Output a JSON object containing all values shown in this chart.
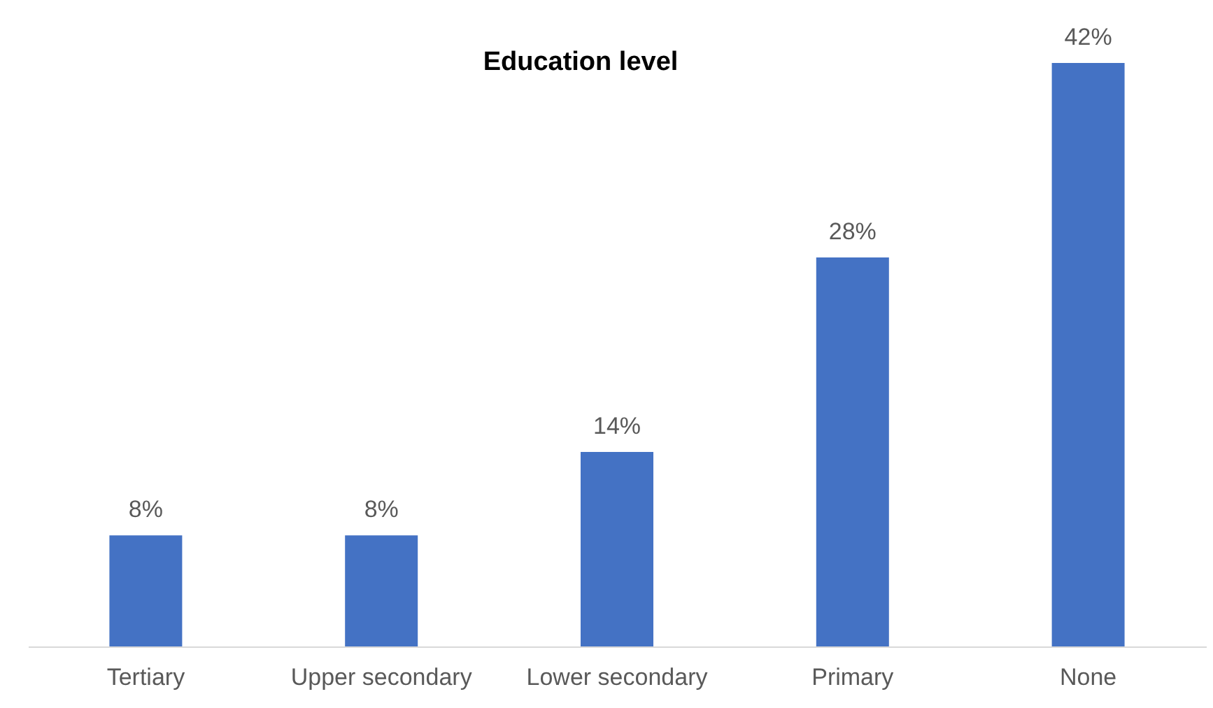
{
  "chart_data": {
    "type": "bar",
    "title": "Education level",
    "categories": [
      "Tertiary",
      "Upper secondary",
      "Lower secondary",
      "Primary",
      "None"
    ],
    "values": [
      8,
      8,
      14,
      28,
      42
    ],
    "value_labels": [
      "8%",
      "8%",
      "14%",
      "28%",
      "42%"
    ],
    "color": "#4472c4"
  }
}
